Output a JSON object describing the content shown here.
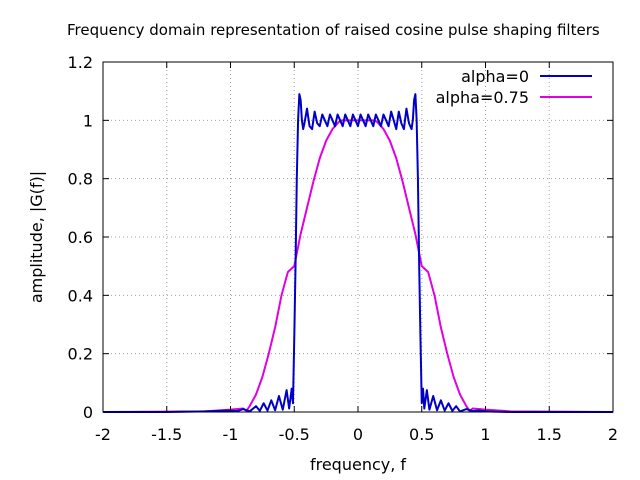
{
  "chart_data": {
    "type": "line",
    "title": "Frequency domain representation of raised cosine pulse shaping filters",
    "xlabel": "frequency, f",
    "ylabel": "amplitude, |G(f)|",
    "xlim": [
      -2,
      2
    ],
    "ylim": [
      0,
      1.2
    ],
    "xticks": [
      "-2",
      "-1.5",
      "-1",
      "-0.5",
      "0",
      "0.5",
      "1",
      "1.5",
      "2"
    ],
    "yticks": [
      "0",
      "0.2",
      "0.4",
      "0.6",
      "0.8",
      "1",
      "1.2"
    ],
    "grid": true,
    "legend_position": "top-right",
    "series": [
      {
        "name": "alpha=0",
        "color": "#0000c8",
        "x": [
          -2.0,
          -1.5,
          -1.2,
          -1.0,
          -0.95,
          -0.9,
          -0.85,
          -0.8,
          -0.77,
          -0.74,
          -0.71,
          -0.68,
          -0.65,
          -0.62,
          -0.59,
          -0.56,
          -0.54,
          -0.52,
          -0.51,
          -0.5,
          -0.49,
          -0.48,
          -0.47,
          -0.46,
          -0.45,
          -0.44,
          -0.43,
          -0.42,
          -0.4,
          -0.38,
          -0.36,
          -0.34,
          -0.32,
          -0.3,
          -0.28,
          -0.26,
          -0.24,
          -0.22,
          -0.2,
          -0.18,
          -0.16,
          -0.14,
          -0.12,
          -0.1,
          -0.08,
          -0.06,
          -0.04,
          -0.02,
          0.0,
          0.02,
          0.04,
          0.06,
          0.08,
          0.1,
          0.12,
          0.14,
          0.16,
          0.18,
          0.2,
          0.22,
          0.24,
          0.26,
          0.28,
          0.3,
          0.32,
          0.34,
          0.36,
          0.38,
          0.4,
          0.42,
          0.43,
          0.44,
          0.45,
          0.46,
          0.47,
          0.48,
          0.49,
          0.5,
          0.51,
          0.52,
          0.54,
          0.56,
          0.59,
          0.62,
          0.65,
          0.68,
          0.71,
          0.74,
          0.77,
          0.8,
          0.85,
          0.9,
          0.95,
          1.0,
          1.2,
          1.5,
          2.0
        ],
        "y": [
          0.0,
          0.0,
          0.002,
          0.005,
          0.003,
          0.01,
          0.002,
          0.02,
          0.004,
          0.03,
          0.005,
          0.04,
          0.006,
          0.055,
          0.008,
          0.075,
          0.012,
          0.08,
          0.03,
          0.25,
          0.5,
          0.8,
          1.0,
          1.09,
          1.07,
          1.0,
          0.97,
          0.99,
          1.04,
          0.98,
          0.97,
          1.03,
          0.99,
          0.98,
          1.02,
          1.0,
          0.98,
          1.02,
          1.0,
          0.98,
          1.02,
          1.0,
          0.98,
          1.02,
          1.0,
          0.98,
          1.02,
          1.0,
          0.98,
          1.02,
          1.0,
          0.98,
          1.02,
          1.0,
          0.98,
          1.02,
          1.0,
          0.98,
          1.02,
          1.0,
          0.98,
          1.03,
          1.0,
          0.97,
          1.03,
          0.99,
          0.97,
          1.04,
          0.99,
          0.97,
          1.0,
          1.07,
          1.09,
          1.0,
          0.8,
          0.5,
          0.25,
          0.03,
          0.08,
          0.012,
          0.075,
          0.008,
          0.055,
          0.006,
          0.04,
          0.005,
          0.03,
          0.004,
          0.02,
          0.002,
          0.01,
          0.003,
          0.005,
          0.002,
          0.0,
          0.0,
          0.0
        ]
      },
      {
        "name": "alpha=0.75",
        "color": "#e000e0",
        "x": [
          -2.0,
          -1.2,
          -1.0,
          -0.9,
          -0.875,
          -0.85,
          -0.8,
          -0.75,
          -0.7,
          -0.65,
          -0.6,
          -0.55,
          -0.5,
          -0.45,
          -0.4,
          -0.35,
          -0.3,
          -0.25,
          -0.2,
          -0.15,
          -0.125,
          -0.1,
          -0.05,
          0.0,
          0.05,
          0.1,
          0.125,
          0.15,
          0.2,
          0.25,
          0.3,
          0.35,
          0.4,
          0.45,
          0.5,
          0.55,
          0.6,
          0.65,
          0.7,
          0.75,
          0.8,
          0.85,
          0.875,
          0.9,
          1.0,
          1.2,
          2.0
        ],
        "y": [
          0.0,
          0.002,
          0.008,
          0.012,
          0.004,
          0.02,
          0.06,
          0.12,
          0.2,
          0.29,
          0.4,
          0.48,
          0.5,
          0.61,
          0.7,
          0.79,
          0.87,
          0.93,
          0.97,
          0.995,
          1.0,
          1.0,
          1.0,
          1.0,
          1.0,
          1.0,
          1.0,
          0.995,
          0.97,
          0.93,
          0.87,
          0.79,
          0.7,
          0.61,
          0.5,
          0.48,
          0.4,
          0.29,
          0.2,
          0.12,
          0.06,
          0.02,
          0.004,
          0.012,
          0.008,
          0.002,
          0.0
        ]
      }
    ]
  }
}
